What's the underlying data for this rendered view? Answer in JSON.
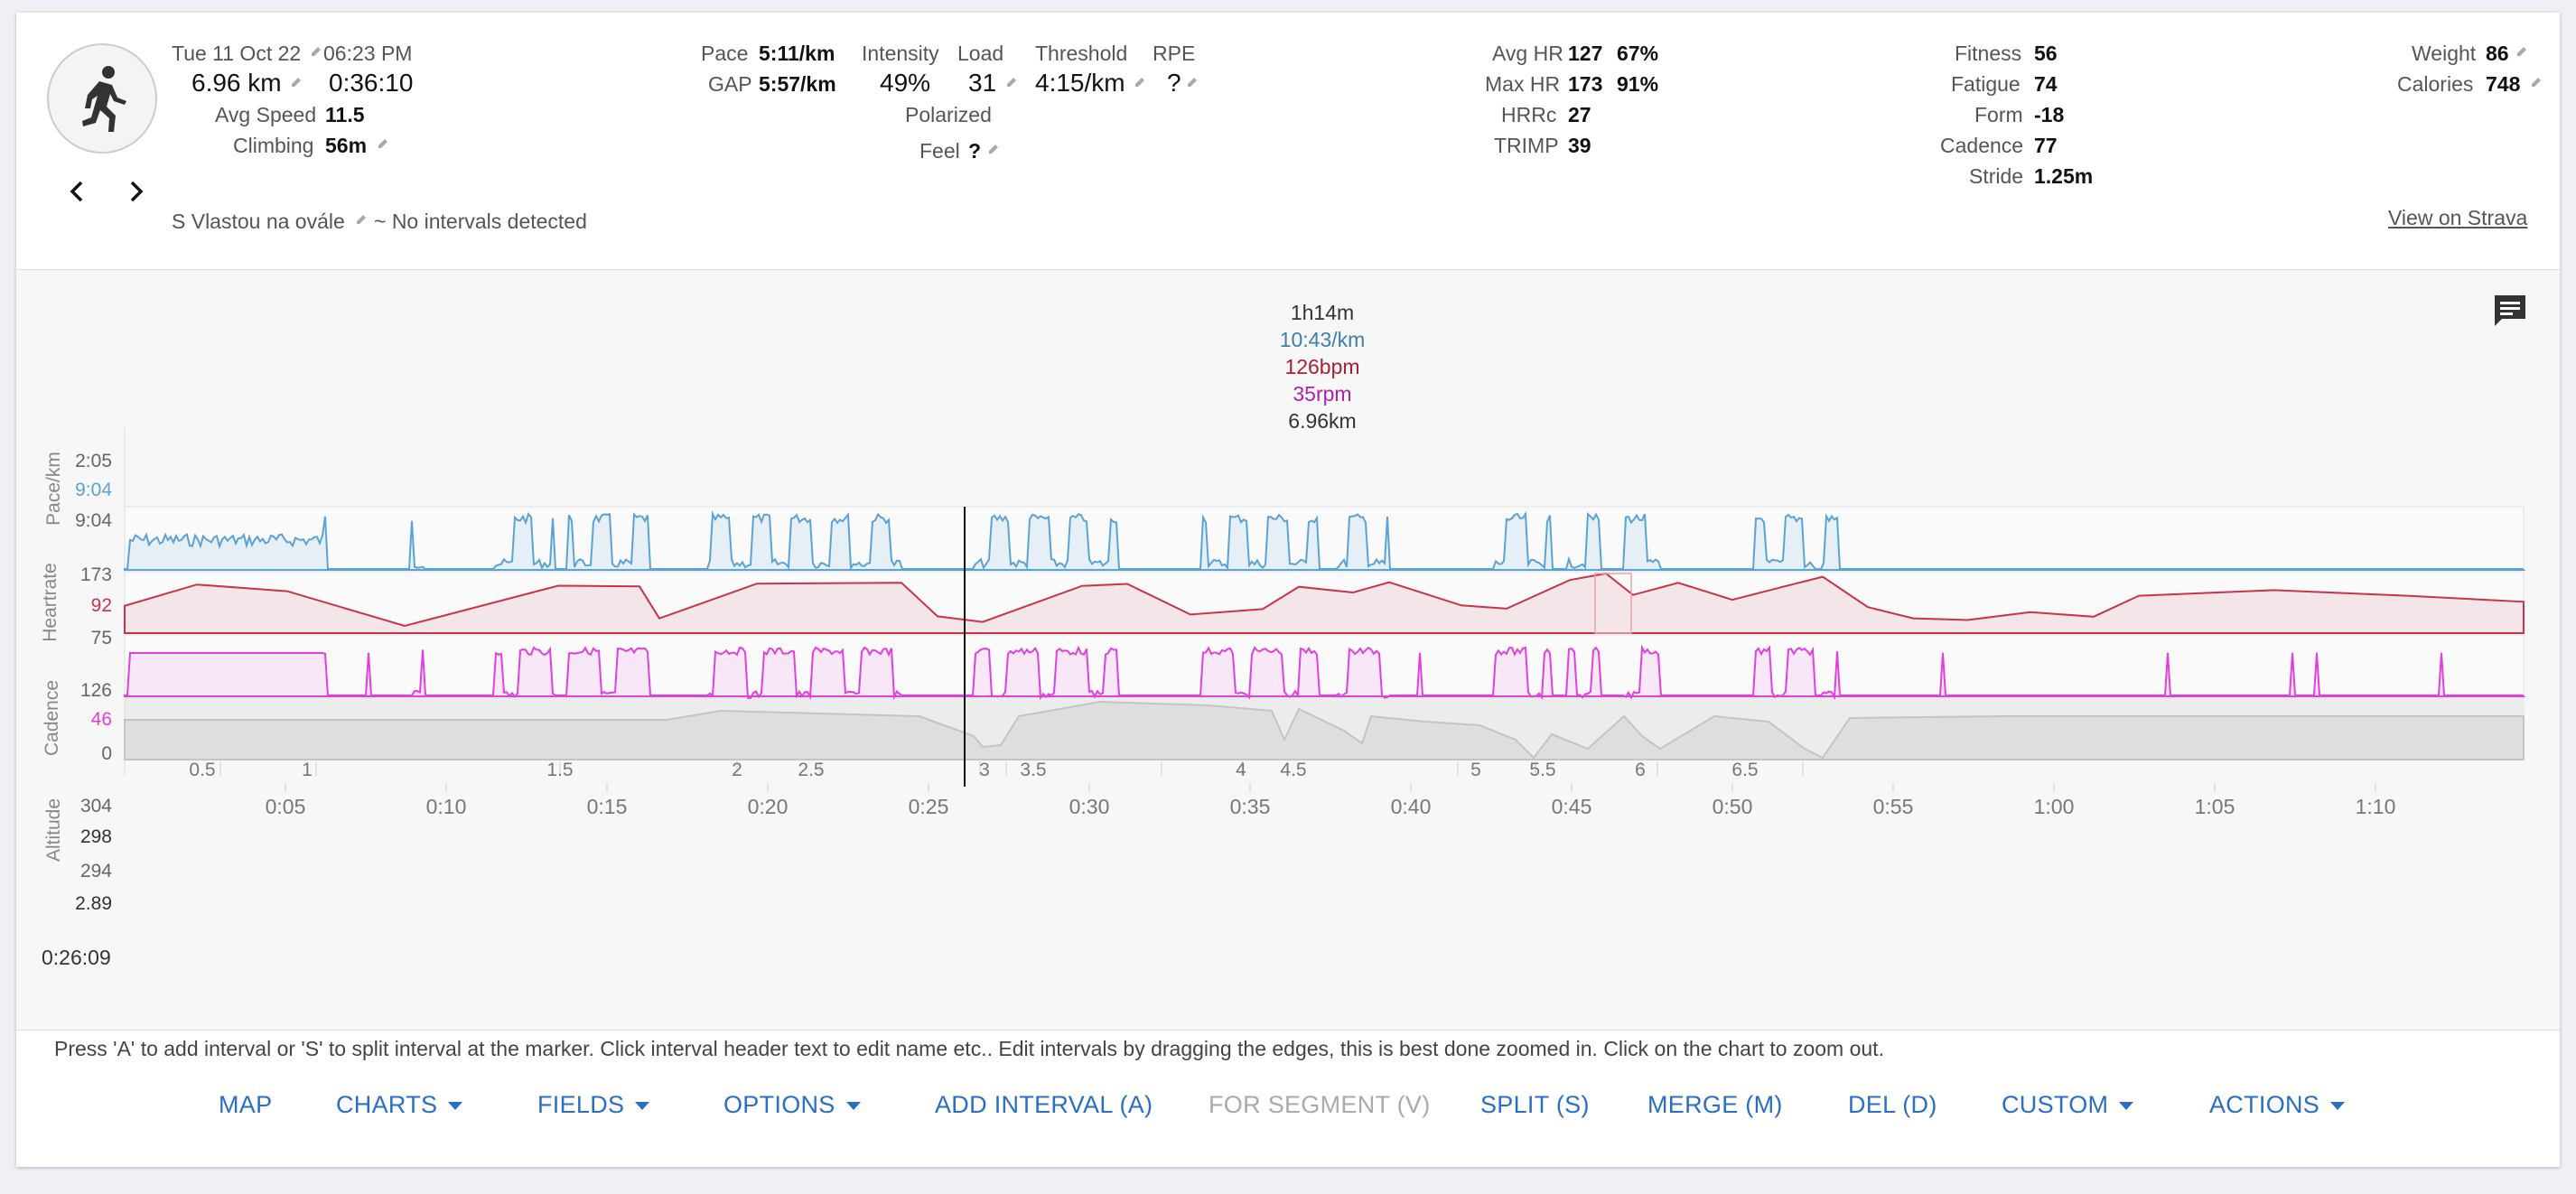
{
  "activity": {
    "date": "Tue 11 Oct 22",
    "time": "06:23 PM",
    "distance": "6.96 km",
    "duration": "0:36:10",
    "avg_speed_label": "Avg Speed",
    "avg_speed": "11.5",
    "climbing_label": "Climbing",
    "climbing": "56m",
    "name": "S Vlastou na ovále",
    "intervals_note": "~ No intervals detected",
    "view_link": "View on Strava"
  },
  "stats": {
    "pace_label": "Pace",
    "pace": "5:11/km",
    "gap_label": "GAP",
    "gap": "5:57/km",
    "intensity_label": "Intensity",
    "intensity": "49%",
    "load_label": "Load",
    "load": "31",
    "threshold_label": "Threshold",
    "threshold": "4:15/km",
    "rpe_label": "RPE",
    "rpe": "?",
    "polarized": "Polarized",
    "feel_label": "Feel",
    "feel": "?",
    "avg_hr_label": "Avg HR",
    "avg_hr": "127",
    "avg_hr_pct": "67%",
    "max_hr_label": "Max HR",
    "max_hr": "173",
    "max_hr_pct": "91%",
    "hrrc_label": "HRRc",
    "hrrc": "27",
    "trimp_label": "TRIMP",
    "trimp": "39",
    "fitness_label": "Fitness",
    "fitness": "56",
    "fatigue_label": "Fatigue",
    "fatigue": "74",
    "form_label": "Form",
    "form": "-18",
    "cadence_label": "Cadence",
    "cadence": "77",
    "stride_label": "Stride",
    "stride": "1.25m",
    "weight_label": "Weight",
    "weight": "86",
    "calories_label": "Calories",
    "calories": "748"
  },
  "chart": {
    "tooltip": {
      "time": "1h14m",
      "pace": "10:43/km",
      "hr": "126bpm",
      "cadence": "35rpm",
      "distance": "6.96km"
    },
    "panels": {
      "pace": {
        "label": "Pace/km",
        "top": "2:05",
        "mid": "9:04",
        "bottom": "9:04",
        "color": "#5aa3d6"
      },
      "hr": {
        "label": "Heartrate",
        "top": "173",
        "mid": "92",
        "bottom": "75",
        "color": "#c8344a"
      },
      "cadence": {
        "label": "Cadence",
        "top": "126",
        "mid": "46",
        "bottom": "0",
        "color": "#e040e0"
      },
      "altitude": {
        "label": "Altitude",
        "top": "304",
        "mid": "298",
        "bottom": "294",
        "color": "#999999"
      }
    },
    "distance_start": "2.89",
    "distance_ticks": [
      "0.5",
      "1",
      "1.5",
      "2",
      "2.5",
      "3",
      "3.5",
      "4",
      "4.5",
      "5",
      "5.5",
      "6",
      "6.5"
    ],
    "cursor_time": "0:26:09",
    "time_ticks": [
      "0:05",
      "0:10",
      "0:15",
      "0:20",
      "0:25",
      "0:30",
      "0:35",
      "0:40",
      "0:45",
      "0:50",
      "0:55",
      "1:00",
      "1:05",
      "1:10"
    ]
  },
  "footer": {
    "hint": "Press 'A' to add interval or 'S' to split interval at the marker. Click interval header text to edit name etc.. Edit intervals by dragging the edges, this is best done zoomed in. Click on the chart to zoom out.",
    "buttons": {
      "map": "MAP",
      "charts": "CHARTS",
      "fields": "FIELDS",
      "options": "OPTIONS",
      "add_interval": "ADD INTERVAL (A)",
      "for_segment": "FOR SEGMENT (V)",
      "split": "SPLIT (S)",
      "merge": "MERGE (M)",
      "del": "DEL (D)",
      "custom": "CUSTOM",
      "actions": "ACTIONS"
    }
  }
}
